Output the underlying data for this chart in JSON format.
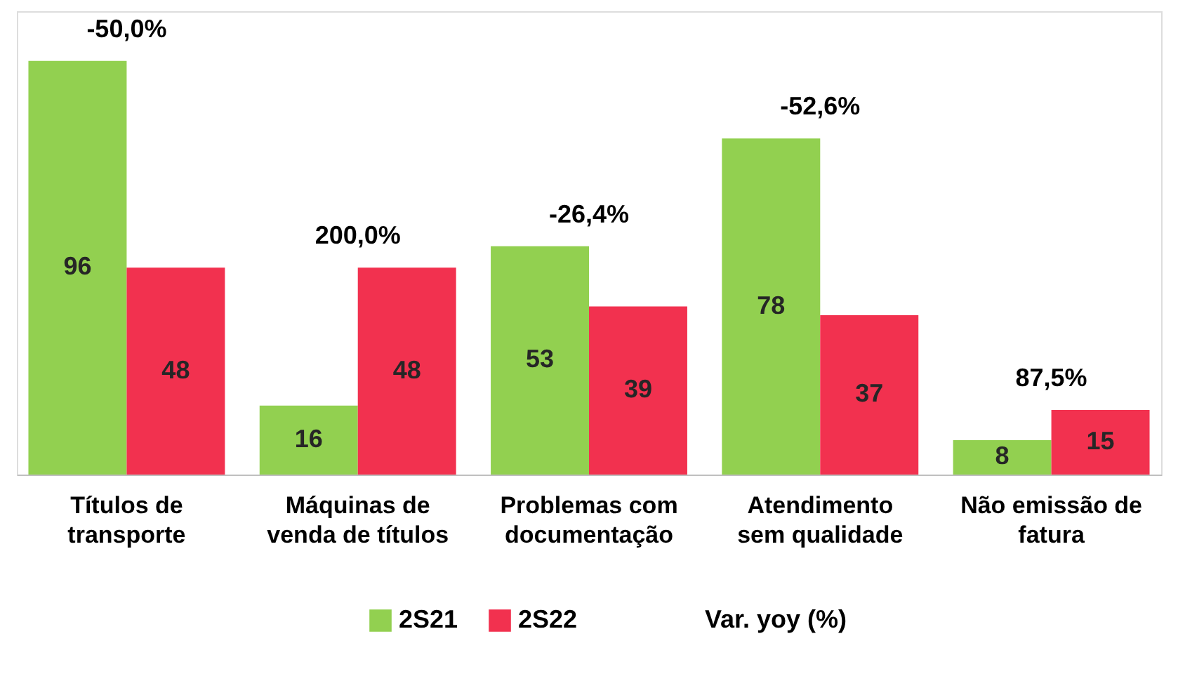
{
  "chart_data": {
    "type": "bar",
    "categories": [
      "Títulos de\ntransporte",
      "Máquinas de\nvenda de títulos",
      "Problemas com\ndocumentação",
      "Atendimento\nsem qualidade",
      "Não emissão de\nfatura"
    ],
    "series": [
      {
        "name": "2S21",
        "color": "#92d050",
        "values": [
          96,
          16,
          53,
          78,
          8
        ]
      },
      {
        "name": "2S22",
        "color": "#f2314f",
        "values": [
          48,
          48,
          39,
          37,
          15
        ]
      }
    ],
    "data_labels": true,
    "legend": "bottom",
    "grid": false,
    "annotations": [
      {
        "text": "-50,0%",
        "x": "Títulos de\ntransporte",
        "y": 96
      },
      {
        "text": "200,0%",
        "x": "Máquinas de\nvenda de títulos",
        "y": 48
      },
      {
        "text": "-26,4%",
        "x": "Problemas com\ndocumentação",
        "y": 53
      },
      {
        "text": "-52,6%",
        "x": "Atendimento\nsem qualidade",
        "y": 78
      },
      {
        "text": "87,5%",
        "x": "Não emissão de\nfatura",
        "y": 15
      },
      "Var. yoy (%)"
    ]
  }
}
